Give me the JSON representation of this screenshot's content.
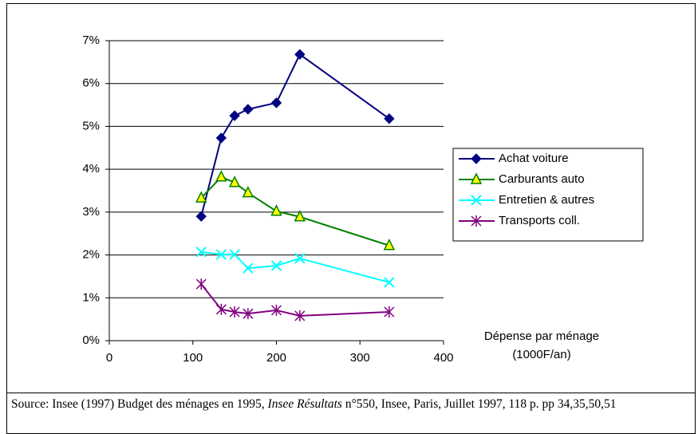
{
  "chart_data": {
    "type": "line",
    "x": [
      110,
      134,
      150,
      166,
      200,
      228,
      335
    ],
    "series": [
      {
        "name": "Achat voiture",
        "color": "#000080",
        "marker": "diamond",
        "marker_fill": "#000080",
        "values": [
          2.9,
          4.73,
          5.25,
          5.4,
          5.55,
          6.68,
          5.18
        ]
      },
      {
        "name": "Carburants auto",
        "color": "#008000",
        "marker": "triangle",
        "marker_fill": "#ffff00",
        "values": [
          3.33,
          3.82,
          3.69,
          3.45,
          3.02,
          2.89,
          2.22
        ]
      },
      {
        "name": "Entretien & autres",
        "color": "#00ffff",
        "marker": "x",
        "marker_fill": "#00ffff",
        "values": [
          2.07,
          2.01,
          2.01,
          1.69,
          1.75,
          1.92,
          1.36
        ]
      },
      {
        "name": "Transports coll.",
        "color": "#800080",
        "marker": "star",
        "marker_fill": "#800080",
        "values": [
          1.32,
          0.73,
          0.67,
          0.63,
          0.71,
          0.58,
          0.67
        ]
      }
    ],
    "xlim": [
      0,
      400
    ],
    "xticks": [
      0,
      100,
      200,
      300,
      400
    ],
    "ylim": [
      0,
      7
    ],
    "yticks": [
      {
        "value": 0,
        "label": "0%"
      },
      {
        "value": 1,
        "label": "1%"
      },
      {
        "value": 2,
        "label": "2%"
      },
      {
        "value": 3,
        "label": "3%"
      },
      {
        "value": 4,
        "label": "4%"
      },
      {
        "value": 5,
        "label": "5%"
      },
      {
        "value": 6,
        "label": "6%"
      },
      {
        "value": 7,
        "label": "7%"
      }
    ],
    "grid": true,
    "legend": "right",
    "xlabel_lines": [
      "Dépense par ménage",
      "(1000F/an)"
    ]
  },
  "source": {
    "before": "Source: Insee (1997) Budget des ménages en 1995, ",
    "italic": "Insee Résultats",
    "after": " n°550, Insee, Paris, Juillet 1997, 118 p. pp 34,35,50,51"
  }
}
